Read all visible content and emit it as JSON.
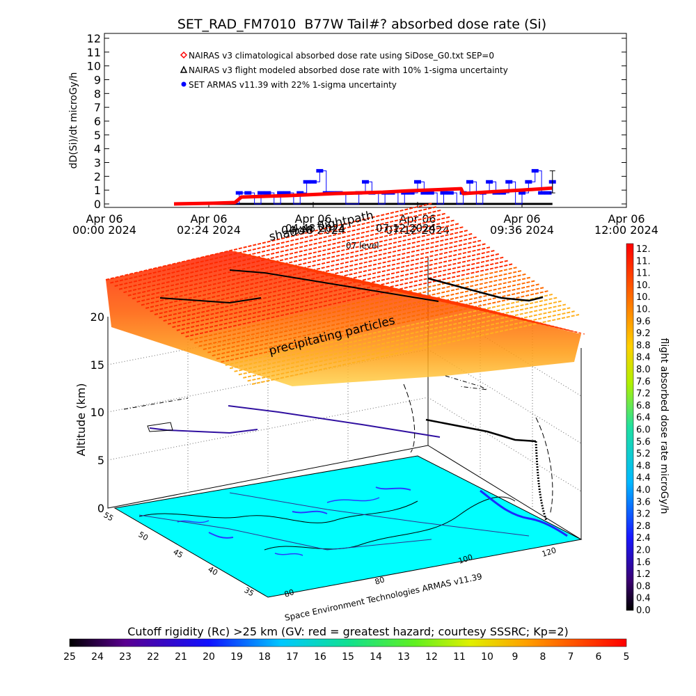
{
  "chart_data": [
    {
      "type": "line",
      "title": "SET_RAD_FM7010  B77W Tail#? absorbed dose rate (Si)",
      "ylabel": "dD(Si)/dt microGy/h",
      "ylim": [
        0,
        12
      ],
      "yticks": [
        "0",
        "1",
        "2",
        "3",
        "4",
        "5",
        "6",
        "7",
        "8",
        "9",
        "10",
        "11",
        "12"
      ],
      "xlim_hours": [
        0,
        12
      ],
      "xticks": [
        {
          "hour": 0,
          "line1": "Apr 06",
          "line2": "00:00 2024"
        },
        {
          "hour": 2.4,
          "line1": "Apr 06",
          "line2": "02:24 2024"
        },
        {
          "hour": 4.8,
          "line1": "Apr 06",
          "line2": "04:48 2024"
        },
        {
          "hour": 7.2,
          "line1": "Apr 06",
          "line2": "07:12 2024"
        },
        {
          "hour": 9.6,
          "line1": "Apr 06",
          "line2": "09:36 2024"
        },
        {
          "hour": 12,
          "line1": "Apr 06",
          "line2": "12:00 2024"
        }
      ],
      "legend": [
        {
          "symbol": "diamond",
          "color": "#ff0000",
          "text": "NAIRAS v3 climatological absorbed dose rate using SiDose_G0.txt SEP=0"
        },
        {
          "symbol": "triangle",
          "color": "#000000",
          "text": "NAIRAS v3 flight modeled absorbed dose rate with 10% 1-sigma uncertainty"
        },
        {
          "symbol": "dot",
          "color": "#0000ff",
          "text": "SET ARMAS v11.39 with 22% 1-sigma uncertainty"
        }
      ],
      "series": [
        {
          "name": "NAIRAS v3 climatological absorbed dose rate using SiDose_G0.txt SEP=0",
          "color": "#ff0000",
          "x": [
            1.6,
            2.5,
            3.0,
            3.15,
            4.2,
            5.3,
            6.4,
            7.0,
            8.2,
            8.25,
            9.0,
            9.6,
            10.3
          ],
          "y": [
            0,
            0.05,
            0.1,
            0.5,
            0.6,
            0.75,
            0.85,
            0.95,
            1.1,
            0.75,
            0.9,
            1.0,
            1.15
          ]
        },
        {
          "name": "NAIRAS v3 flight modeled absorbed dose rate with 10% 1-sigma uncertainty",
          "color": "#000000",
          "x": [
            1.6,
            10.3
          ],
          "y": [
            0,
            0
          ]
        },
        {
          "name": "SET ARMAS v11.39 with 22% 1-sigma uncertainty",
          "color": "#0000ff",
          "x": [
            1.6,
            2.0,
            2.5,
            2.9,
            3.1,
            3.3,
            3.45,
            3.6,
            3.75,
            3.9,
            4.05,
            4.2,
            4.35,
            4.5,
            4.65,
            4.8,
            4.95,
            5.1,
            5.25,
            5.4,
            5.55,
            5.7,
            5.85,
            6.0,
            6.15,
            6.3,
            6.45,
            6.6,
            6.75,
            6.9,
            7.05,
            7.2,
            7.35,
            7.5,
            7.65,
            7.8,
            7.95,
            8.1,
            8.25,
            8.4,
            8.55,
            8.7,
            8.85,
            9.0,
            9.15,
            9.3,
            9.45,
            9.6,
            9.75,
            9.9,
            10.05,
            10.2,
            10.3
          ],
          "y": [
            0,
            0,
            0,
            0,
            0.8,
            0.8,
            0,
            0.8,
            0.8,
            0,
            0.8,
            0.8,
            0,
            0.8,
            1.6,
            1.6,
            2.4,
            0.8,
            0.8,
            0.8,
            0,
            0,
            0.8,
            1.6,
            0.8,
            0,
            0.8,
            0.8,
            0,
            0.8,
            0.8,
            1.6,
            0.8,
            0.8,
            0,
            0.8,
            0.8,
            0,
            0.8,
            1.6,
            0,
            0.8,
            1.6,
            0.8,
            0.8,
            1.6,
            0,
            0.8,
            1.6,
            2.4,
            0.8,
            0.8,
            1.6
          ]
        }
      ]
    },
    {
      "type": "3d-surface",
      "zlabel": "Altitude (km)",
      "zlim": [
        0,
        20
      ],
      "zticks": [
        "0",
        "5",
        "10",
        "15",
        "20"
      ],
      "latitude_ticks": [
        "35",
        "40",
        "45",
        "50",
        "55"
      ],
      "longitude_ticks": [
        "80",
        "100",
        "120"
      ],
      "annotations": [
        "shadow flightpath",
        "precipitating particles"
      ],
      "overlay_labels": [
        "04:48 2024",
        "07:12 2024",
        "07 level"
      ],
      "credit": "Space Environment Technologies ARMAS v11.39",
      "dose_colorbar": {
        "label": "flight absorbed dose rate microGy/h",
        "ticks": [
          "12.",
          "11.",
          "11.",
          "10.",
          "10.",
          "10.",
          "9.6",
          "9.2",
          "8.8",
          "8.4",
          "8.0",
          "7.6",
          "7.2",
          "6.8",
          "6.4",
          "6.0",
          "5.6",
          "5.2",
          "4.8",
          "4.4",
          "4.0",
          "3.6",
          "3.2",
          "2.8",
          "2.4",
          "2.0",
          "1.6",
          "1.2",
          "0.8",
          "0.4",
          "0.0"
        ]
      },
      "rigidity_colorbar": {
        "label": "Cutoff rigidity (Rc) >25 km (GV: red = greatest hazard; courtesy SSSRC; Kp=2)",
        "ticks": [
          "25",
          "24",
          "23",
          "22",
          "21",
          "20",
          "19",
          "18",
          "17",
          "16",
          "15",
          "14",
          "13",
          "12",
          "11",
          "10",
          "9",
          "8",
          "7",
          "6",
          "5"
        ]
      }
    }
  ]
}
